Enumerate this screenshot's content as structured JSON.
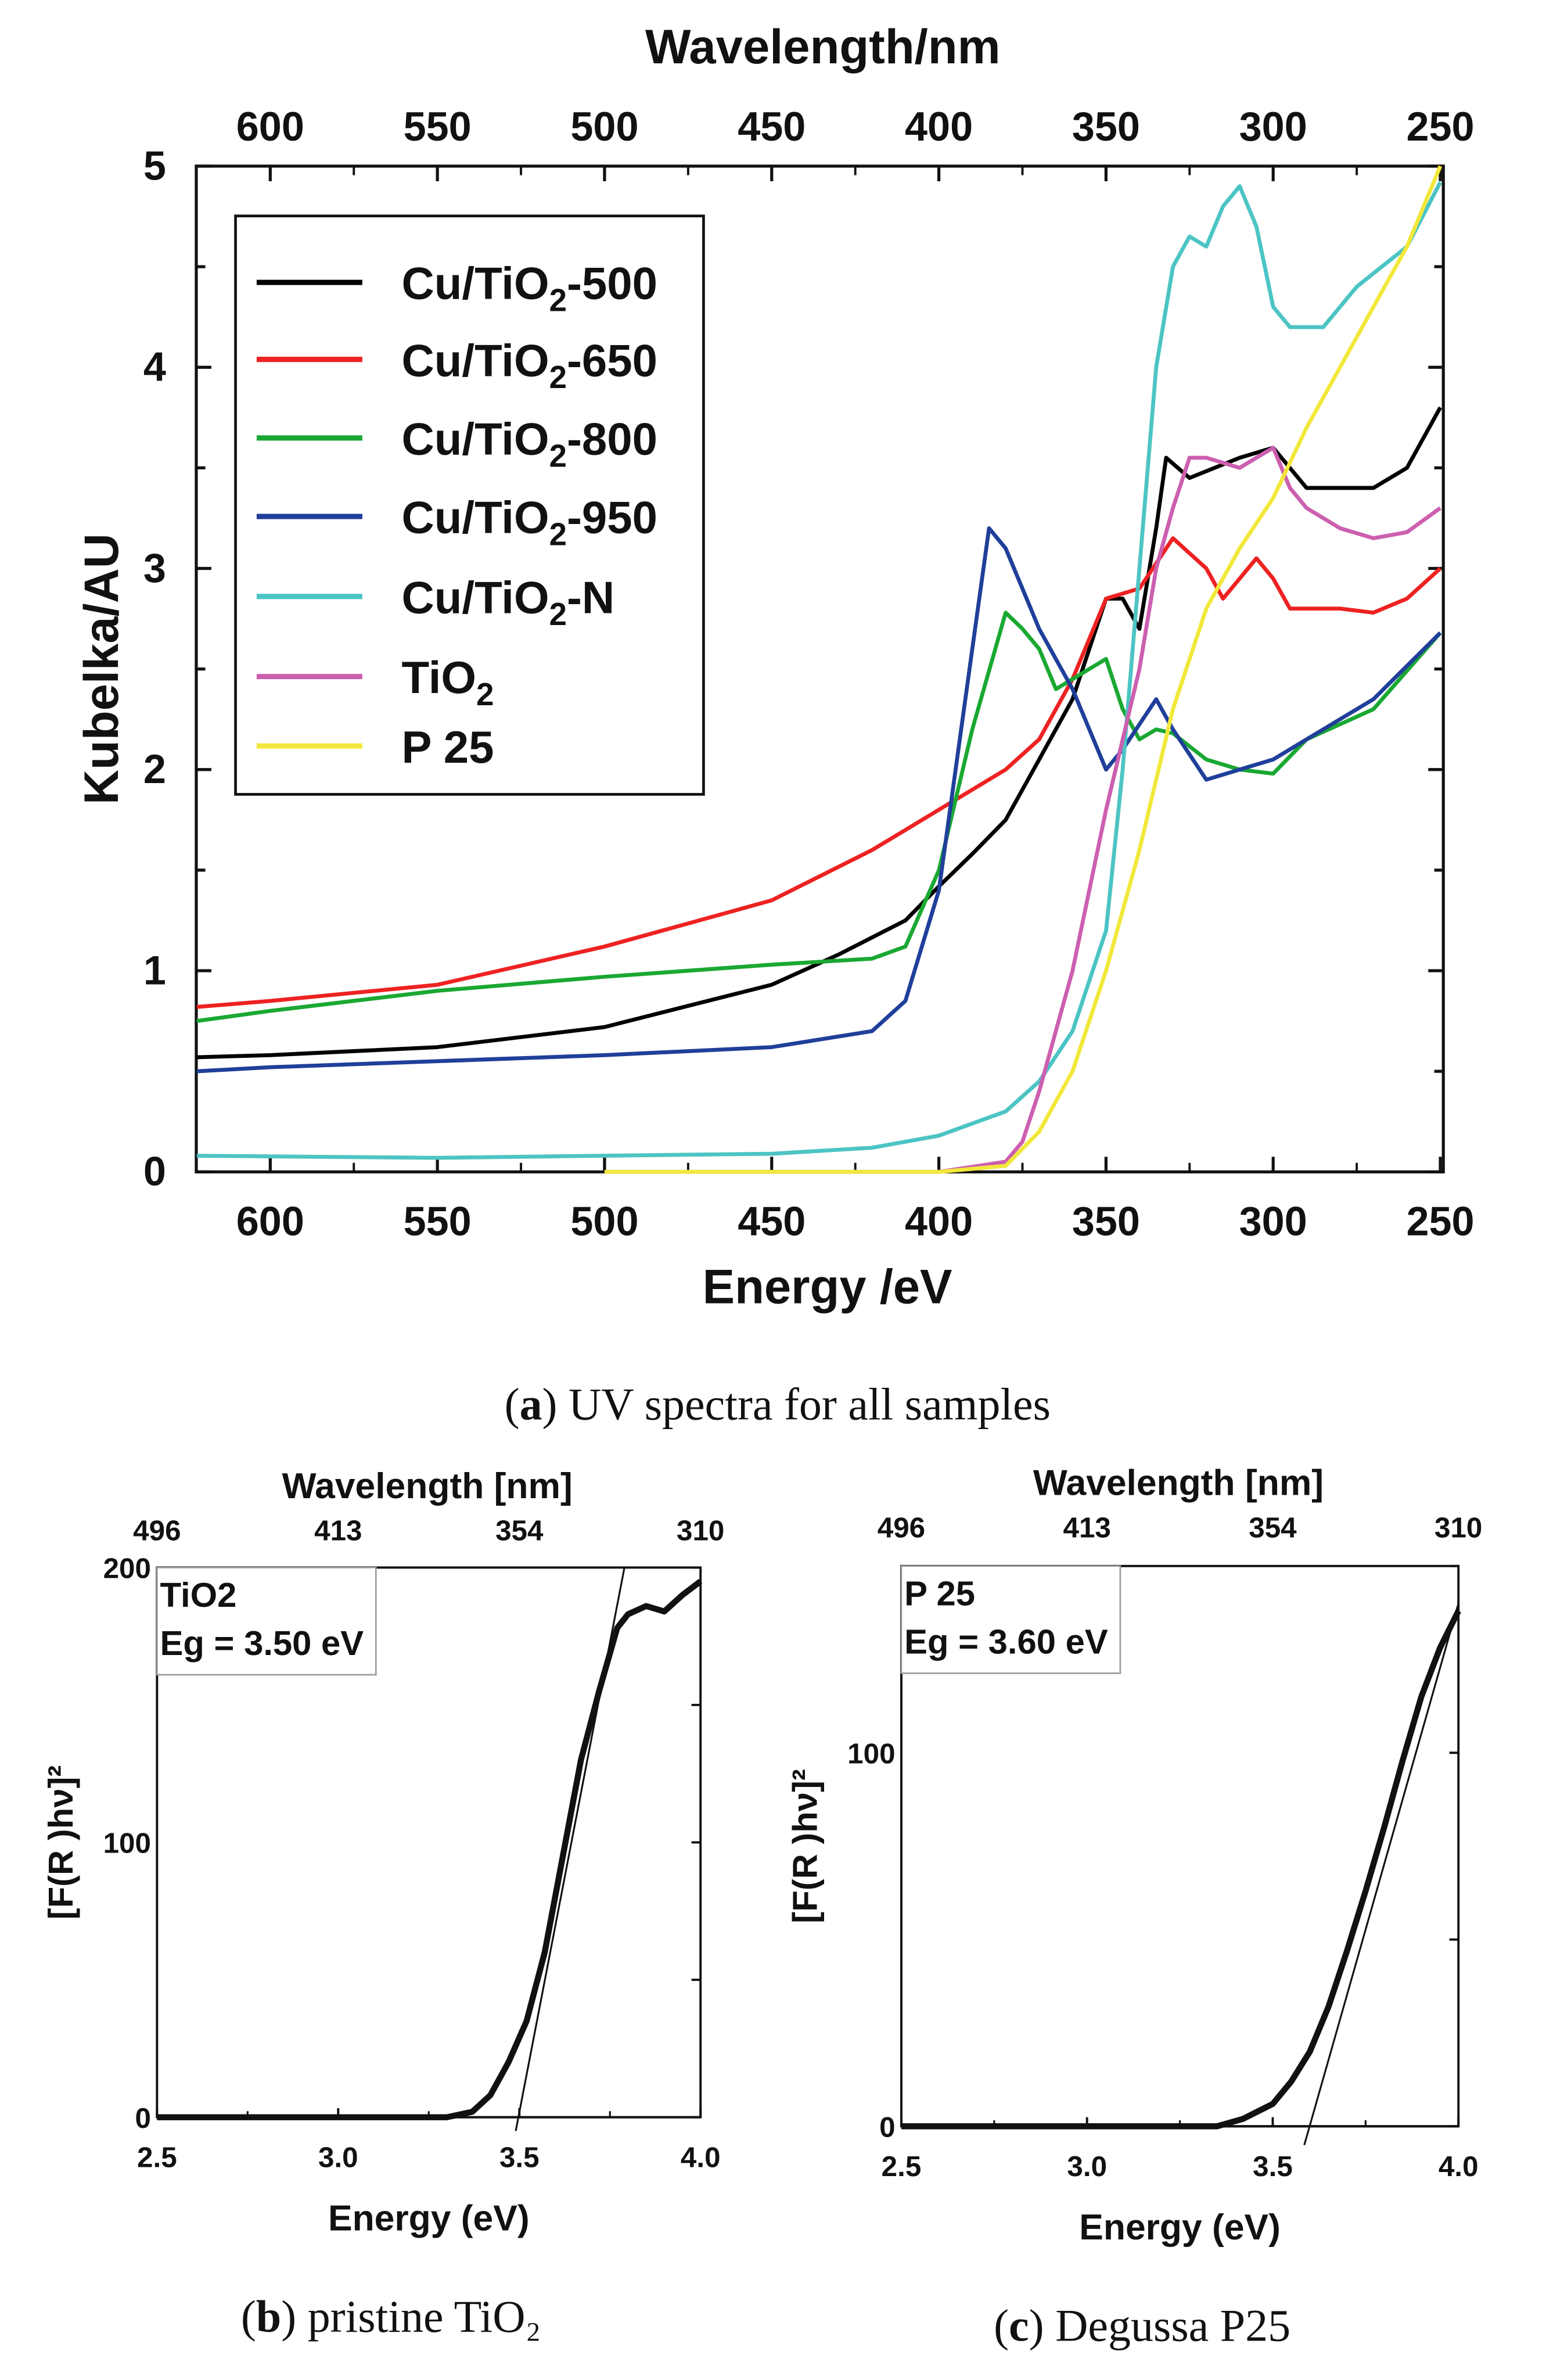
{
  "chart_data": [
    {
      "id": "a",
      "type": "line",
      "caption_letter": "a",
      "caption_text": " UV spectra for all samples",
      "top_axis_title": "Wavelength/nm",
      "xlabel": "Energy /eV",
      "ylabel": "Kubelka/AU",
      "xlim": [
        622,
        250
      ],
      "ylim": [
        0,
        5
      ],
      "x_ticks": [
        600,
        550,
        500,
        450,
        400,
        350,
        300,
        250
      ],
      "y_ticks": [
        0,
        1,
        2,
        3,
        4,
        5
      ],
      "legend_position": "top-left",
      "series": [
        {
          "name": "Cu/TiO₂-500",
          "label_main": "Cu/TiO",
          "label_sub": "2",
          "label_tail": "-500",
          "color": "#000000",
          "points": [
            [
              622,
              0.57
            ],
            [
              600,
              0.58
            ],
            [
              550,
              0.62
            ],
            [
              500,
              0.72
            ],
            [
              450,
              0.93
            ],
            [
              430,
              1.08
            ],
            [
              410,
              1.25
            ],
            [
              400,
              1.42
            ],
            [
              390,
              1.58
            ],
            [
              380,
              1.75
            ],
            [
              370,
              2.05
            ],
            [
              360,
              2.35
            ],
            [
              350,
              2.85
            ],
            [
              345,
              2.85
            ],
            [
              340,
              2.7
            ],
            [
              335,
              3.2
            ],
            [
              332,
              3.55
            ],
            [
              325,
              3.45
            ],
            [
              310,
              3.55
            ],
            [
              300,
              3.6
            ],
            [
              290,
              3.4
            ],
            [
              270,
              3.4
            ],
            [
              260,
              3.5
            ],
            [
              250,
              3.8
            ]
          ]
        },
        {
          "name": "Cu/TiO₂-650",
          "label_main": "Cu/TiO",
          "label_sub": "2",
          "label_tail": "-650",
          "color": "#ee2222",
          "points": [
            [
              622,
              0.82
            ],
            [
              600,
              0.85
            ],
            [
              550,
              0.93
            ],
            [
              500,
              1.12
            ],
            [
              450,
              1.35
            ],
            [
              420,
              1.6
            ],
            [
              410,
              1.7
            ],
            [
              400,
              1.8
            ],
            [
              380,
              2.0
            ],
            [
              370,
              2.15
            ],
            [
              360,
              2.45
            ],
            [
              350,
              2.85
            ],
            [
              340,
              2.9
            ],
            [
              330,
              3.15
            ],
            [
              320,
              3.0
            ],
            [
              315,
              2.85
            ],
            [
              305,
              3.05
            ],
            [
              300,
              2.95
            ],
            [
              295,
              2.8
            ],
            [
              280,
              2.8
            ],
            [
              270,
              2.78
            ],
            [
              260,
              2.85
            ],
            [
              250,
              3.0
            ]
          ]
        },
        {
          "name": "Cu/TiO₂-800",
          "label_main": "Cu/TiO",
          "label_sub": "2",
          "label_tail": "-800",
          "color": "#1aa832",
          "points": [
            [
              622,
              0.75
            ],
            [
              600,
              0.8
            ],
            [
              550,
              0.9
            ],
            [
              500,
              0.97
            ],
            [
              450,
              1.03
            ],
            [
              420,
              1.06
            ],
            [
              410,
              1.12
            ],
            [
              400,
              1.5
            ],
            [
              390,
              2.2
            ],
            [
              380,
              2.78
            ],
            [
              375,
              2.7
            ],
            [
              370,
              2.6
            ],
            [
              365,
              2.4
            ],
            [
              355,
              2.5
            ],
            [
              350,
              2.55
            ],
            [
              345,
              2.3
            ],
            [
              340,
              2.15
            ],
            [
              335,
              2.2
            ],
            [
              330,
              2.18
            ],
            [
              320,
              2.05
            ],
            [
              310,
              2.0
            ],
            [
              300,
              1.98
            ],
            [
              290,
              2.15
            ],
            [
              270,
              2.3
            ],
            [
              250,
              2.68
            ]
          ]
        },
        {
          "name": "Cu/TiO₂-950",
          "label_main": "Cu/TiO",
          "label_sub": "2",
          "label_tail": "-950",
          "color": "#1f3f9a",
          "points": [
            [
              622,
              0.5
            ],
            [
              600,
              0.52
            ],
            [
              550,
              0.55
            ],
            [
              500,
              0.58
            ],
            [
              450,
              0.62
            ],
            [
              420,
              0.7
            ],
            [
              410,
              0.85
            ],
            [
              400,
              1.4
            ],
            [
              390,
              2.6
            ],
            [
              385,
              3.2
            ],
            [
              380,
              3.1
            ],
            [
              375,
              2.9
            ],
            [
              370,
              2.7
            ],
            [
              360,
              2.4
            ],
            [
              350,
              2.0
            ],
            [
              345,
              2.1
            ],
            [
              335,
              2.35
            ],
            [
              330,
              2.2
            ],
            [
              320,
              1.95
            ],
            [
              310,
              2.0
            ],
            [
              300,
              2.05
            ],
            [
              290,
              2.15
            ],
            [
              270,
              2.35
            ],
            [
              250,
              2.68
            ]
          ]
        },
        {
          "name": "Cu/TiO₂-N",
          "label_main": "Cu/TiO",
          "label_sub": "2",
          "label_tail": "-N",
          "color": "#4cc4c4",
          "points": [
            [
              622,
              0.08
            ],
            [
              550,
              0.07
            ],
            [
              500,
              0.08
            ],
            [
              450,
              0.09
            ],
            [
              420,
              0.12
            ],
            [
              400,
              0.18
            ],
            [
              380,
              0.3
            ],
            [
              370,
              0.45
            ],
            [
              360,
              0.7
            ],
            [
              350,
              1.2
            ],
            [
              345,
              2.0
            ],
            [
              340,
              3.0
            ],
            [
              335,
              4.0
            ],
            [
              330,
              4.5
            ],
            [
              325,
              4.65
            ],
            [
              320,
              4.6
            ],
            [
              315,
              4.8
            ],
            [
              310,
              4.9
            ],
            [
              305,
              4.7
            ],
            [
              300,
              4.3
            ],
            [
              295,
              4.2
            ],
            [
              285,
              4.2
            ],
            [
              275,
              4.4
            ],
            [
              260,
              4.6
            ],
            [
              250,
              4.92
            ]
          ]
        },
        {
          "name": "TiO₂",
          "label_main": "TiO",
          "label_sub": "2",
          "label_tail": "",
          "color": "#cc5fb0",
          "points": [
            [
              500,
              0.0
            ],
            [
              400,
              0.0
            ],
            [
              380,
              0.05
            ],
            [
              375,
              0.15
            ],
            [
              370,
              0.4
            ],
            [
              360,
              1.0
            ],
            [
              350,
              1.8
            ],
            [
              340,
              2.5
            ],
            [
              335,
              3.0
            ],
            [
              330,
              3.3
            ],
            [
              325,
              3.55
            ],
            [
              320,
              3.55
            ],
            [
              310,
              3.5
            ],
            [
              305,
              3.55
            ],
            [
              300,
              3.6
            ],
            [
              295,
              3.4
            ],
            [
              290,
              3.3
            ],
            [
              280,
              3.2
            ],
            [
              270,
              3.15
            ],
            [
              260,
              3.18
            ],
            [
              250,
              3.3
            ]
          ]
        },
        {
          "name": "P 25",
          "label_main": "P 25",
          "label_sub": "",
          "label_tail": "",
          "color": "#f2e83a",
          "points": [
            [
              500,
              0.0
            ],
            [
              400,
              0.0
            ],
            [
              380,
              0.03
            ],
            [
              370,
              0.2
            ],
            [
              360,
              0.5
            ],
            [
              350,
              1.0
            ],
            [
              340,
              1.6
            ],
            [
              330,
              2.3
            ],
            [
              320,
              2.8
            ],
            [
              310,
              3.1
            ],
            [
              300,
              3.35
            ],
            [
              290,
              3.7
            ],
            [
              280,
              4.0
            ],
            [
              270,
              4.3
            ],
            [
              260,
              4.6
            ],
            [
              250,
              5.0
            ]
          ]
        }
      ]
    },
    {
      "id": "b",
      "type": "line",
      "caption_letter": "b",
      "caption_text": " pristine TiO₂",
      "top_axis_title": "Wavelength [nm]",
      "top_ticks": [
        "496",
        "413",
        "354",
        "310"
      ],
      "xlabel": "Energy (eV)",
      "ylabel": "[F(R )hν]²",
      "xlim": [
        2.5,
        4.0
      ],
      "ylim": [
        0,
        200
      ],
      "x_ticks": [
        "2.5",
        "3.0",
        "3.5",
        "4.0"
      ],
      "y_ticks": [
        0,
        100,
        200
      ],
      "annotation_sample": "TiO₂",
      "annotation_eg": "Eg = 3.50 eV",
      "eg_value": 3.5,
      "points": [
        [
          2.5,
          0
        ],
        [
          3.3,
          0
        ],
        [
          3.37,
          2
        ],
        [
          3.42,
          8
        ],
        [
          3.47,
          20
        ],
        [
          3.52,
          35
        ],
        [
          3.57,
          60
        ],
        [
          3.62,
          95
        ],
        [
          3.67,
          130
        ],
        [
          3.72,
          155
        ],
        [
          3.77,
          178
        ],
        [
          3.8,
          183
        ],
        [
          3.85,
          186
        ],
        [
          3.9,
          184
        ],
        [
          3.95,
          190
        ],
        [
          4.0,
          195
        ]
      ],
      "tangent": [
        [
          3.49,
          -5
        ],
        [
          3.79,
          200
        ]
      ]
    },
    {
      "id": "c",
      "type": "line",
      "caption_letter": "c",
      "caption_text": " Degussa P25",
      "top_axis_title": "Wavelength [nm]",
      "top_ticks": [
        "496",
        "413",
        "354",
        "310"
      ],
      "xlabel": "Energy (eV)",
      "ylabel": "[F(R )hν]²",
      "xlim": [
        2.5,
        4.0
      ],
      "ylim": [
        0,
        150
      ],
      "x_ticks": [
        "2.5",
        "3.0",
        "3.5",
        "4.0"
      ],
      "y_ticks": [
        0,
        100
      ],
      "annotation_sample": "P 25",
      "annotation_eg": "Eg = 3.60 eV",
      "eg_value": 3.6,
      "points": [
        [
          2.5,
          0
        ],
        [
          3.35,
          0
        ],
        [
          3.42,
          2
        ],
        [
          3.5,
          6
        ],
        [
          3.55,
          12
        ],
        [
          3.6,
          20
        ],
        [
          3.65,
          32
        ],
        [
          3.7,
          47
        ],
        [
          3.75,
          63
        ],
        [
          3.8,
          80
        ],
        [
          3.85,
          98
        ],
        [
          3.9,
          115
        ],
        [
          3.95,
          128
        ],
        [
          4.0,
          138
        ]
      ],
      "tangent": [
        [
          3.585,
          -5
        ],
        [
          4.0,
          140
        ]
      ]
    }
  ]
}
